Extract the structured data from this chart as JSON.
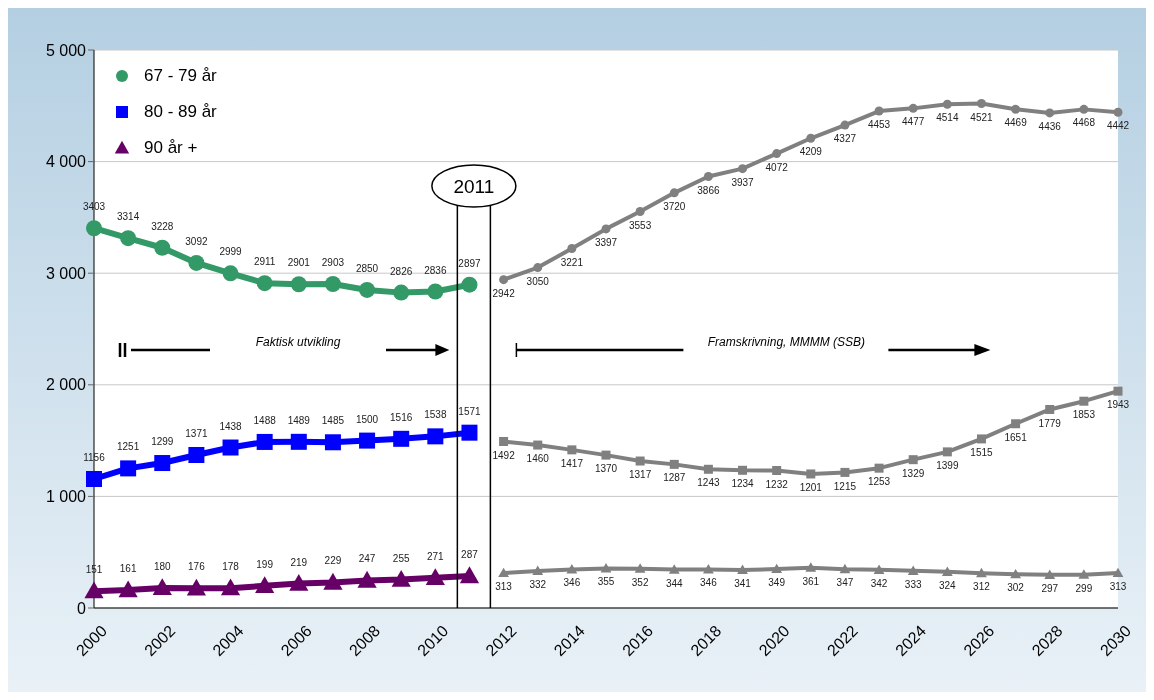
{
  "chart_data": {
    "type": "line",
    "categories": [
      "2000",
      null,
      "2002",
      null,
      "2004",
      null,
      "2006",
      null,
      "2008",
      null,
      "2010",
      null,
      "2012",
      null,
      "2014",
      null,
      "2016",
      null,
      "2018",
      null,
      "2020",
      null,
      "2022",
      null,
      "2024",
      null,
      "2026",
      null,
      "2028",
      null,
      "2030"
    ],
    "series": [
      {
        "name": "67 - 79 år",
        "color": "#339966",
        "marker": "circle",
        "values": [
          3403,
          3314,
          3228,
          3092,
          2999,
          2911,
          2901,
          2903,
          2850,
          2826,
          2836,
          2897,
          null,
          null,
          null,
          null,
          null,
          null,
          null,
          null,
          null,
          null,
          null,
          null,
          null,
          null,
          null,
          null,
          null,
          null,
          null
        ]
      },
      {
        "name": "80 - 89 år",
        "color": "#0000ff",
        "marker": "square",
        "values": [
          1156,
          1251,
          1299,
          1371,
          1438,
          1488,
          1489,
          1485,
          1500,
          1516,
          1538,
          1571,
          null,
          null,
          null,
          null,
          null,
          null,
          null,
          null,
          null,
          null,
          null,
          null,
          null,
          null,
          null,
          null,
          null,
          null,
          null
        ]
      },
      {
        "name": "90 år +",
        "color": "#660066",
        "marker": "triangle",
        "values": [
          151,
          161,
          180,
          176,
          178,
          199,
          219,
          229,
          247,
          255,
          271,
          287,
          null,
          null,
          null,
          null,
          null,
          null,
          null,
          null,
          null,
          null,
          null,
          null,
          null,
          null,
          null,
          null,
          null,
          null,
          null
        ]
      },
      {
        "color": "#808080",
        "marker": "circle",
        "values": [
          null,
          null,
          null,
          null,
          null,
          null,
          null,
          null,
          null,
          null,
          null,
          null,
          2942,
          3050,
          3221,
          3397,
          3553,
          3720,
          3866,
          3937,
          4072,
          4209,
          4327,
          4453,
          4477,
          4514,
          4521,
          4469,
          4436,
          4468,
          4442
        ]
      },
      {
        "color": "#808080",
        "marker": "square",
        "values": [
          null,
          null,
          null,
          null,
          null,
          null,
          null,
          null,
          null,
          null,
          null,
          null,
          1492,
          1460,
          1417,
          1370,
          1317,
          1287,
          1243,
          1234,
          1232,
          1201,
          1215,
          1253,
          1329,
          1399,
          1515,
          1651,
          1779,
          1853,
          1943
        ]
      },
      {
        "color": "#808080",
        "marker": "triangle",
        "values": [
          null,
          null,
          null,
          null,
          null,
          null,
          null,
          null,
          null,
          null,
          null,
          null,
          313,
          332,
          346,
          355,
          352,
          344,
          346,
          341,
          349,
          361,
          347,
          342,
          333,
          324,
          312,
          302,
          297,
          299,
          313
        ]
      }
    ],
    "ylim": [
      0,
      5000
    ],
    "yticks": [
      {
        "value": 0,
        "label": "0"
      },
      {
        "value": 1000,
        "label": "1 000"
      },
      {
        "value": 2000,
        "label": "2 000"
      },
      {
        "value": 3000,
        "label": "3 000"
      },
      {
        "value": 4000,
        "label": "4 000"
      },
      {
        "value": 5000,
        "label": "5 000"
      }
    ],
    "grid": "y",
    "legend": "top left",
    "data_labels": true,
    "annotations": [
      "2011",
      "Faktisk utvikling",
      "Framskrivning, MMMM (SSB)"
    ]
  }
}
